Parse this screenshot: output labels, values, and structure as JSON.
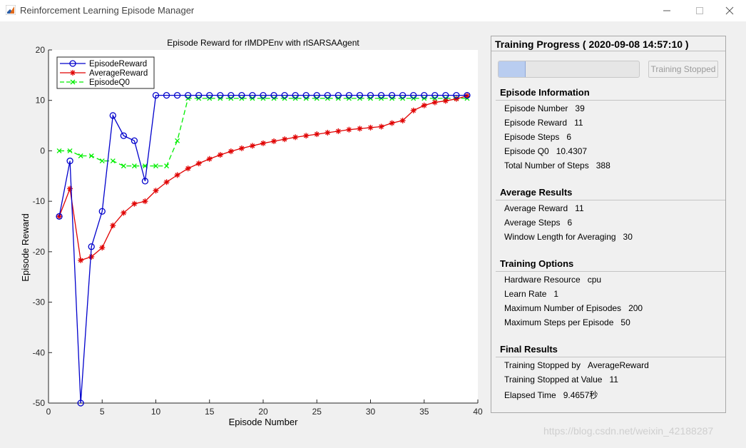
{
  "window": {
    "title": "Reinforcement Learning Episode Manager"
  },
  "chart_data": {
    "type": "line",
    "title": "Episode Reward for rlMDPEnv with rlSARSAAgent",
    "xlabel": "Episode Number",
    "ylabel": "Episode Reward",
    "xlim": [
      0,
      40
    ],
    "ylim": [
      -50,
      20
    ],
    "xticks": [
      "0",
      "5",
      "10",
      "15",
      "20",
      "25",
      "30",
      "35",
      "40"
    ],
    "yticks": [
      "20",
      "10",
      "0",
      "-10",
      "-20",
      "-30",
      "-40",
      "-50"
    ],
    "legend_position": "top-left",
    "x": [
      1,
      2,
      3,
      4,
      5,
      6,
      7,
      8,
      9,
      10,
      11,
      12,
      13,
      14,
      15,
      16,
      17,
      18,
      19,
      20,
      21,
      22,
      23,
      24,
      25,
      26,
      27,
      28,
      29,
      30,
      31,
      32,
      33,
      34,
      35,
      36,
      37,
      38,
      39
    ],
    "series": [
      {
        "name": "EpisodeReward",
        "color": "#0000cc",
        "marker": "circle",
        "values": [
          -13,
          -2,
          -50,
          -19,
          -12,
          7,
          3,
          2,
          -6,
          11,
          11,
          11,
          11,
          11,
          11,
          11,
          11,
          11,
          11,
          11,
          11,
          11,
          11,
          11,
          11,
          11,
          11,
          11,
          11,
          11,
          11,
          11,
          11,
          11,
          11,
          11,
          11,
          11,
          11
        ]
      },
      {
        "name": "AverageReward",
        "color": "#e00000",
        "marker": "star",
        "values": [
          -13,
          -7.5,
          -21.7,
          -21,
          -19.2,
          -14.8,
          -12.3,
          -10.5,
          -10,
          -7.9,
          -6.2,
          -4.8,
          -3.5,
          -2.5,
          -1.6,
          -0.8,
          -0.1,
          0.5,
          1.0,
          1.5,
          1.9,
          2.3,
          2.7,
          3.0,
          3.3,
          3.6,
          3.9,
          4.2,
          4.4,
          4.6,
          4.8,
          5.5,
          6.0,
          8.0,
          9.0,
          9.6,
          9.9,
          10.3,
          10.9
        ]
      },
      {
        "name": "EpisodeQ0",
        "color": "#00ee00",
        "marker": "x",
        "dashed": true,
        "values": [
          0,
          0,
          -1,
          -1,
          -2,
          -2,
          -3,
          -3,
          -3,
          -3,
          -3,
          2,
          10.4,
          10.4,
          10.4,
          10.4,
          10.4,
          10.4,
          10.4,
          10.4,
          10.4,
          10.4,
          10.4,
          10.4,
          10.4,
          10.4,
          10.4,
          10.4,
          10.4,
          10.4,
          10.4,
          10.4,
          10.4,
          10.4,
          10.4,
          10.4,
          10.4,
          10.4,
          10.4
        ]
      }
    ]
  },
  "panel": {
    "title": "Training Progress ( 2020-09-08 14:57:10 )",
    "progress": 0.195,
    "stop_button": "Training Stopped",
    "episode_info": {
      "title": "Episode Information",
      "rows": [
        {
          "label": "Episode Number",
          "value": "39"
        },
        {
          "label": "Episode Reward",
          "value": "11"
        },
        {
          "label": "Episode Steps",
          "value": "6"
        },
        {
          "label": "Episode Q0",
          "value": "10.4307"
        },
        {
          "label": "Total Number of Steps",
          "value": "388"
        }
      ]
    },
    "average_results": {
      "title": "Average Results",
      "rows": [
        {
          "label": "Average Reward",
          "value": "11"
        },
        {
          "label": "Average Steps",
          "value": "6"
        },
        {
          "label": "Window Length for Averaging",
          "value": "30"
        }
      ]
    },
    "training_options": {
      "title": "Training Options",
      "rows": [
        {
          "label": "Hardware Resource",
          "value": "cpu"
        },
        {
          "label": "Learn Rate",
          "value": "1"
        },
        {
          "label": "Maximum Number of Episodes",
          "value": "200"
        },
        {
          "label": "Maximum Steps per Episode",
          "value": "50"
        }
      ]
    },
    "final_results": {
      "title": "Final Results",
      "rows": [
        {
          "label": "Training Stopped by",
          "value": "AverageReward"
        },
        {
          "label": "Training Stopped at Value",
          "value": "11"
        },
        {
          "label": "Elapsed Time",
          "value": "9.4657秒"
        }
      ]
    }
  },
  "watermark": "https://blog.csdn.net/weixin_42188287"
}
